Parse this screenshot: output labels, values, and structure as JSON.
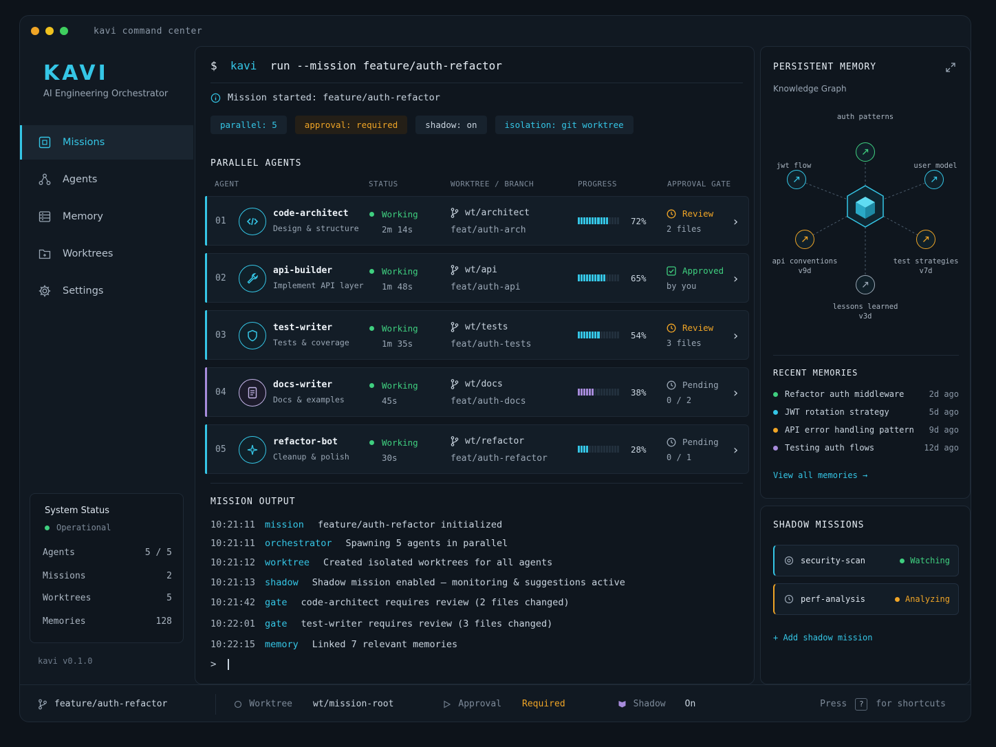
{
  "window": {
    "title": "kavi command center"
  },
  "sidebar": {
    "logo": "KAVI",
    "subtitle": "AI Engineering Orchestrator",
    "nav": [
      {
        "label": "Missions",
        "icon": "missions-icon"
      },
      {
        "label": "Agents",
        "icon": "agents-icon"
      },
      {
        "label": "Memory",
        "icon": "memory-icon"
      },
      {
        "label": "Worktrees",
        "icon": "worktrees-icon"
      },
      {
        "label": "Settings",
        "icon": "gear-icon"
      }
    ],
    "system": {
      "title": "System Status",
      "state": "Operational",
      "rows": [
        {
          "label": "Agents",
          "value": "5 / 5"
        },
        {
          "label": "Missions",
          "value": "2"
        },
        {
          "label": "Worktrees",
          "value": "5"
        },
        {
          "label": "Memories",
          "value": "128"
        }
      ]
    },
    "version": "kavi v0.1.0"
  },
  "main": {
    "command_prefix": "$",
    "command_kw": "kavi",
    "command_rest": "run --mission feature/auth-refactor",
    "started": "Mission started: feature/auth-refactor",
    "tags": [
      {
        "label": "parallel: 5",
        "color": "#35c6e6"
      },
      {
        "label": "approval: required",
        "color": "#f0a526"
      },
      {
        "label": "shadow: on",
        "color": "#c9d4df"
      },
      {
        "label": "isolation: git worktree",
        "color": "#35c6e6"
      }
    ],
    "agents_title": "PARALLEL AGENTS",
    "columns": [
      "AGENT",
      "STATUS",
      "WORKTREE / BRANCH",
      "PROGRESS",
      "APPROVAL GATE"
    ],
    "agents": [
      {
        "num": "01",
        "name": "code-architect",
        "desc": "Design & structure",
        "status": "Working",
        "time": "2m 14s",
        "worktree": "wt/architect",
        "branch": "feat/auth-arch",
        "progress": 72,
        "pct": "72%",
        "gate": "Review",
        "gate_sub": "2 files",
        "gate_color": "#f0a526",
        "accent": "#35c6e6"
      },
      {
        "num": "02",
        "name": "api-builder",
        "desc": "Implement API layer",
        "status": "Working",
        "time": "1m 48s",
        "worktree": "wt/api",
        "branch": "feat/auth-api",
        "progress": 65,
        "pct": "65%",
        "gate": "Approved",
        "gate_sub": "by you",
        "gate_color": "#3fcf7f",
        "accent": "#35c6e6"
      },
      {
        "num": "03",
        "name": "test-writer",
        "desc": "Tests & coverage",
        "status": "Working",
        "time": "1m 35s",
        "worktree": "wt/tests",
        "branch": "feat/auth-tests",
        "progress": 54,
        "pct": "54%",
        "gate": "Review",
        "gate_sub": "3 files",
        "gate_color": "#f0a526",
        "accent": "#35c6e6"
      },
      {
        "num": "04",
        "name": "docs-writer",
        "desc": "Docs & examples",
        "status": "Working",
        "time": "45s",
        "worktree": "wt/docs",
        "branch": "feat/auth-docs",
        "progress": 38,
        "pct": "38%",
        "gate": "Pending",
        "gate_sub": "0 / 2",
        "gate_color": "#9aa7b5",
        "accent": "#a78bdb"
      },
      {
        "num": "05",
        "name": "refactor-bot",
        "desc": "Cleanup & polish",
        "status": "Working",
        "time": "30s",
        "worktree": "wt/refactor",
        "branch": "feat/auth-refactor",
        "progress": 28,
        "pct": "28%",
        "gate": "Pending",
        "gate_sub": "0 / 1",
        "gate_color": "#9aa7b5",
        "accent": "#35c6e6"
      }
    ],
    "output_title": "MISSION OUTPUT",
    "log": [
      {
        "time": "10:21:11",
        "src": "mission",
        "msg": "feature/auth-refactor initialized"
      },
      {
        "time": "10:21:11",
        "src": "orchestrator",
        "msg": "Spawning 5 agents in parallel"
      },
      {
        "time": "10:21:12",
        "src": "worktree",
        "msg": "Created isolated worktrees for all agents"
      },
      {
        "time": "10:21:13",
        "src": "shadow",
        "msg": "Shadow mission enabled — monitoring & suggestions active"
      },
      {
        "time": "10:21:42",
        "src": "gate",
        "msg": "code-architect requires review (2 files changed)"
      },
      {
        "time": "10:22:01",
        "src": "gate",
        "msg": "test-writer requires review (3 files changed)"
      },
      {
        "time": "10:22:15",
        "src": "memory",
        "msg": "Linked 7 relevant memories"
      }
    ],
    "prompt": ">"
  },
  "memory": {
    "title": "PERSISTENT MEMORY",
    "subtitle": "Knowledge Graph",
    "nodes": [
      {
        "label": "auth patterns",
        "sub": ""
      },
      {
        "label": "jwt flow",
        "sub": ""
      },
      {
        "label": "user model",
        "sub": ""
      },
      {
        "label": "api conventions",
        "sub": "v9d"
      },
      {
        "label": "test strategies",
        "sub": "v7d"
      },
      {
        "label": "lessons learned",
        "sub": "v3d"
      }
    ],
    "recent_title": "RECENT MEMORIES",
    "recent": [
      {
        "label": "Refactor auth middleware",
        "ago": "2d ago",
        "color": "#3fcf7f"
      },
      {
        "label": "JWT rotation strategy",
        "ago": "5d ago",
        "color": "#35c6e6"
      },
      {
        "label": "API error handling pattern",
        "ago": "9d ago",
        "color": "#f0a526"
      },
      {
        "label": "Testing auth flows",
        "ago": "12d ago",
        "color": "#a78bdb"
      }
    ],
    "view_all": "View all memories →"
  },
  "shadow": {
    "title": "SHADOW MISSIONS",
    "items": [
      {
        "name": "security-scan",
        "status": "Watching",
        "color": "#3fcf7f"
      },
      {
        "name": "perf-analysis",
        "status": "Analyzing",
        "color": "#f0a526"
      }
    ],
    "add": "+ Add shadow mission"
  },
  "footer": {
    "branch": "feature/auth-refactor",
    "worktree_label": "Worktree",
    "worktree_value": "wt/mission-root",
    "approval_label": "Approval",
    "approval_value": "Required",
    "shadow_label": "Shadow",
    "shadow_value": "On",
    "press": "Press",
    "key": "?",
    "shortcuts": "for shortcuts"
  }
}
